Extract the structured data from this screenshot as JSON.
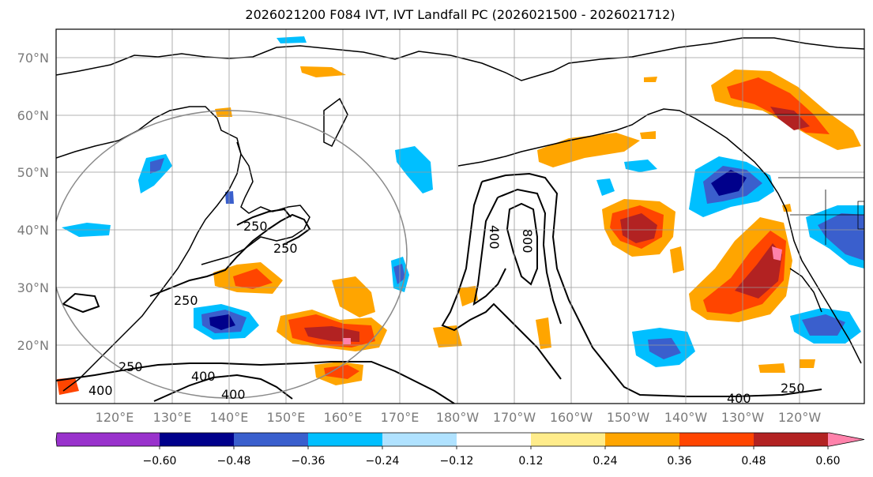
{
  "title": "2026021200 F084 IVT, IVT Landfall PC (2026021500 - 2026021712)",
  "lat_labels": [
    "70°N",
    "60°N",
    "50°N",
    "40°N",
    "30°N",
    "20°N"
  ],
  "lon_labels": [
    "120°E",
    "130°E",
    "140°E",
    "150°E",
    "160°E",
    "170°E",
    "180°W",
    "170°W",
    "160°W",
    "150°W",
    "140°W",
    "130°W",
    "120°W"
  ],
  "contour_labels": [
    "250",
    "250",
    "250",
    "400",
    "400",
    "400",
    "800",
    "400",
    "250",
    "250",
    "400"
  ],
  "colorbar": {
    "ticks": [
      "−0.60",
      "−0.48",
      "−0.36",
      "−0.24",
      "−0.12",
      "0.12",
      "0.24",
      "0.36",
      "0.48",
      "0.60"
    ],
    "colors": [
      "#9932CC",
      "#00008B",
      "#3A5FCD",
      "#00BFFF",
      "#B0E2FF",
      "#FFFFFF",
      "#FFEC8B",
      "#FFA500",
      "#FF4500",
      "#B22222",
      "#FF82AB"
    ]
  },
  "colors": {
    "grid": "#9a9a9a",
    "axis_label": "#7a7a7a"
  }
}
